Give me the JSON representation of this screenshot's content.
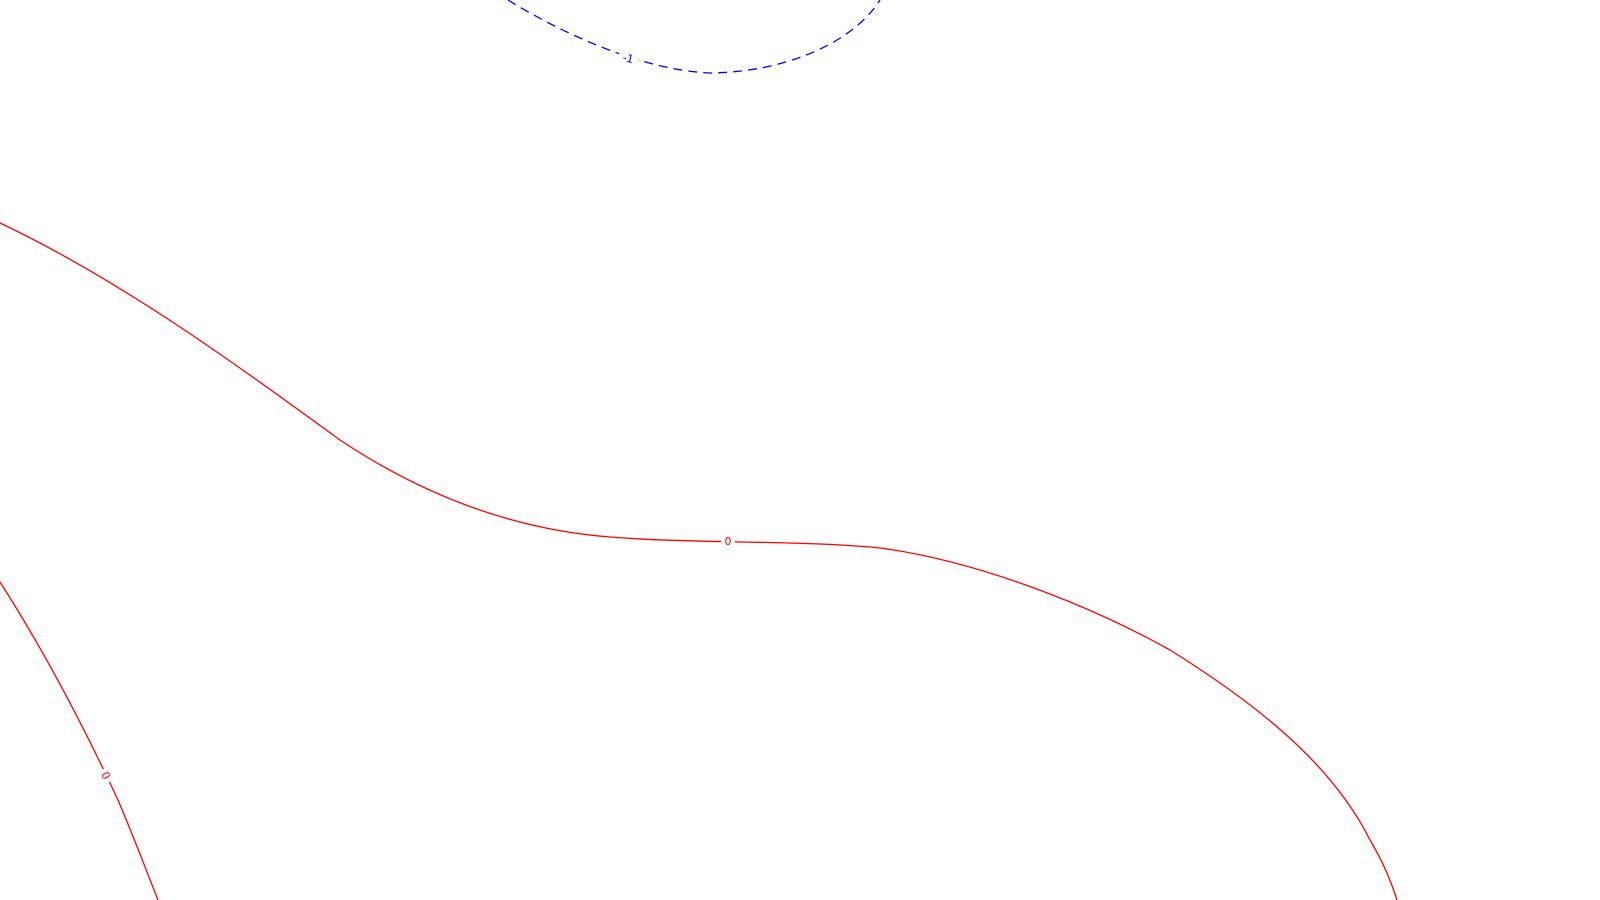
{
  "chart_data": {
    "type": "contour",
    "title": "",
    "xlabel": "",
    "ylabel": "",
    "grid": false,
    "axes_visible": false,
    "colors": {
      "background": "#ffffff",
      "negative_level": "#0000ff",
      "zero_level": "#ff0000"
    },
    "levels": [
      {
        "value": -1,
        "label": "-1",
        "line_style": "dashed",
        "color": "#0000ff"
      },
      {
        "value": 0,
        "label": "0",
        "line_style": "solid",
        "color": "#ff0000"
      }
    ]
  }
}
